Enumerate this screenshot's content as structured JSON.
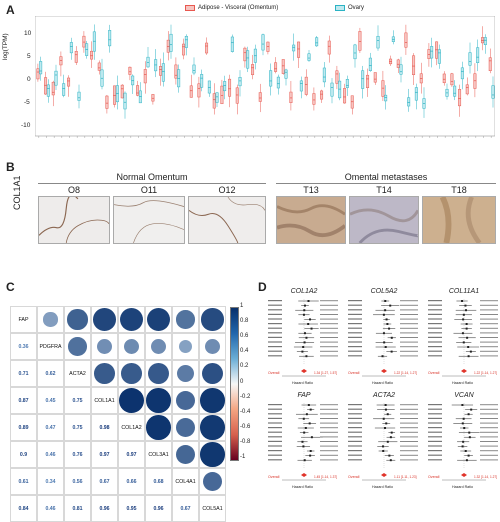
{
  "panels": {
    "a": "A",
    "b": "B",
    "c": "C",
    "d": "D"
  },
  "panelA": {
    "legend": [
      {
        "label": "Adipose - Visceral (Omentum)",
        "color": "#e8584f"
      },
      {
        "label": "Ovary",
        "color": "#2bb3c4"
      }
    ],
    "ylabel": "log(TPM)",
    "yticks": [
      "10",
      "5",
      "0",
      "-5",
      "-10"
    ]
  },
  "panelB": {
    "group_normal": "Normal Omentum",
    "group_tumor": "Omental metastases",
    "samples": [
      "O8",
      "O11",
      "O12",
      "T13",
      "T14",
      "T18"
    ],
    "row_label": "COL1A1"
  },
  "panelC": {
    "labels": [
      "FAP",
      "PDGFRA",
      "ACTA2",
      "COL1A1",
      "COL1A2",
      "COL3A1",
      "COL4A1",
      "COL5A1"
    ],
    "values": [
      [],
      [
        "0.36"
      ],
      [
        "0.71",
        "0.62"
      ],
      [
        "0.87",
        "0.45",
        "0.75"
      ],
      [
        "0.89",
        "0.47",
        "0.75",
        "0.98"
      ],
      [
        "0.9",
        "0.46",
        "0.76",
        "0.97",
        "0.97"
      ],
      [
        "0.61",
        "0.34",
        "0.56",
        "0.67",
        "0.66",
        "0.68"
      ],
      [
        "0.84",
        "0.46",
        "0.81",
        "0.96",
        "0.95",
        "0.96",
        "0.67"
      ]
    ],
    "scale": [
      "1",
      "0.8",
      "0.6",
      "0.4",
      "0.2",
      "0",
      "-0.2",
      "-0.4",
      "-0.6",
      "-0.8",
      "-1"
    ]
  },
  "panelD": {
    "titles": [
      "COL1A2",
      "COL5A2",
      "COL11A1",
      "FAP",
      "ACTA2",
      "VCAN"
    ],
    "overall_label": "Overall",
    "axis_label": "Hazard Ratio",
    "overall_values": [
      "1.34 [1.27, 1.57]",
      "1.22 [1.14, 1.27]",
      "1.22 [1.14, 1.27]",
      "1.45 [1.14, 1.37]",
      "1.11 [1.11, 1.23]",
      "1.32 [1.14, 1.27]"
    ]
  }
}
